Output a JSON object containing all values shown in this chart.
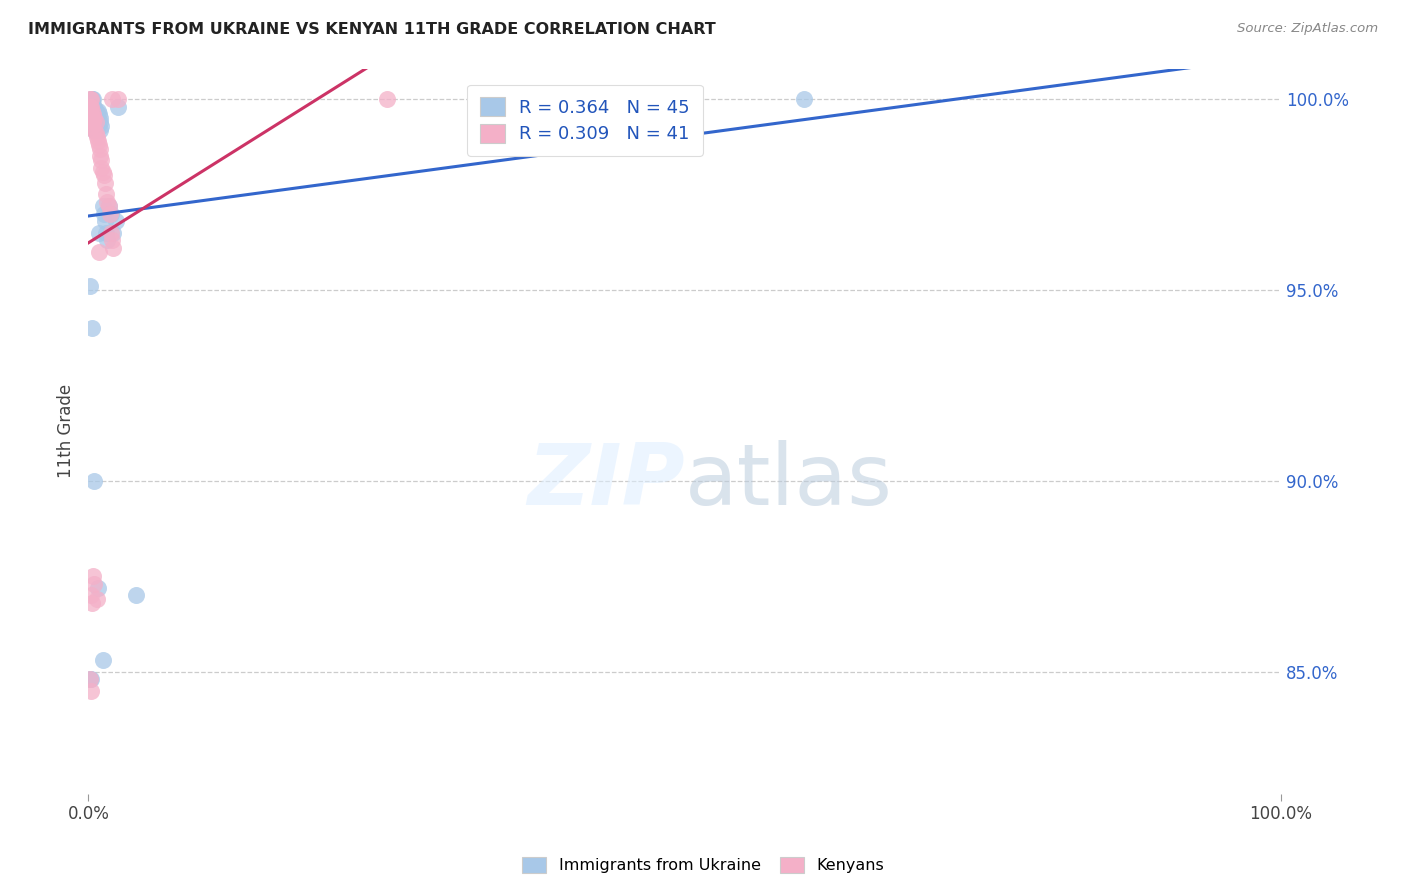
{
  "title": "IMMIGRANTS FROM UKRAINE VS KENYAN 11TH GRADE CORRELATION CHART",
  "source": "Source: ZipAtlas.com",
  "ylabel": "11th Grade",
  "legend_ukraine": "Immigrants from Ukraine",
  "legend_kenya": "Kenyans",
  "R_ukraine": 0.364,
  "N_ukraine": 45,
  "R_kenya": 0.309,
  "N_kenya": 41,
  "ukraine_color": "#a8c8e8",
  "kenya_color": "#f4b0c8",
  "ukraine_line_color": "#3366cc",
  "kenya_line_color": "#cc3366",
  "xmin": 0.0,
  "xmax": 1.0,
  "ymin": 0.818,
  "ymax": 1.008,
  "ytick_vals": [
    0.85,
    0.9,
    0.95,
    1.0
  ],
  "ytick_labels": [
    "85.0%",
    "90.0%",
    "95.0%",
    "100.0%"
  ],
  "ukraine_x": [
    0.001,
    0.001,
    0.001,
    0.002,
    0.002,
    0.002,
    0.003,
    0.003,
    0.003,
    0.004,
    0.004,
    0.004,
    0.005,
    0.005,
    0.005,
    0.006,
    0.006,
    0.007,
    0.007,
    0.008,
    0.008,
    0.009,
    0.009,
    0.01,
    0.01,
    0.01,
    0.011,
    0.012,
    0.013,
    0.014,
    0.015,
    0.016,
    0.017,
    0.019,
    0.021,
    0.023,
    0.005,
    0.008,
    0.012,
    0.025,
    0.04,
    0.6,
    0.001,
    0.002,
    0.003
  ],
  "ukraine_y": [
    0.998,
    0.996,
    0.951,
    1.0,
    0.999,
    0.997,
    1.0,
    0.999,
    0.998,
    1.0,
    0.998,
    0.996,
    0.998,
    0.994,
    0.992,
    0.997,
    0.993,
    0.996,
    0.994,
    0.997,
    0.993,
    0.996,
    0.965,
    0.995,
    0.994,
    0.992,
    0.993,
    0.972,
    0.97,
    0.968,
    0.965,
    0.963,
    0.972,
    0.97,
    0.965,
    0.968,
    0.9,
    0.872,
    0.853,
    0.998,
    0.87,
    1.0,
    0.848,
    0.848,
    0.94
  ],
  "kenya_x": [
    0.001,
    0.001,
    0.002,
    0.002,
    0.003,
    0.003,
    0.003,
    0.004,
    0.004,
    0.005,
    0.005,
    0.006,
    0.006,
    0.007,
    0.008,
    0.009,
    0.009,
    0.01,
    0.01,
    0.011,
    0.011,
    0.012,
    0.013,
    0.014,
    0.015,
    0.016,
    0.017,
    0.018,
    0.019,
    0.02,
    0.021,
    0.002,
    0.003,
    0.004,
    0.005,
    0.007,
    0.001,
    0.002,
    0.02,
    0.025,
    0.25
  ],
  "kenya_y": [
    1.0,
    0.998,
    1.0,
    0.998,
    0.997,
    0.995,
    0.993,
    0.996,
    0.994,
    0.995,
    0.992,
    0.994,
    0.991,
    0.99,
    0.989,
    0.988,
    0.96,
    0.987,
    0.985,
    0.984,
    0.982,
    0.981,
    0.98,
    0.978,
    0.975,
    0.973,
    0.972,
    0.97,
    0.965,
    0.963,
    0.961,
    0.87,
    0.868,
    0.875,
    0.873,
    0.869,
    0.848,
    0.845,
    1.0,
    1.0,
    1.0
  ]
}
